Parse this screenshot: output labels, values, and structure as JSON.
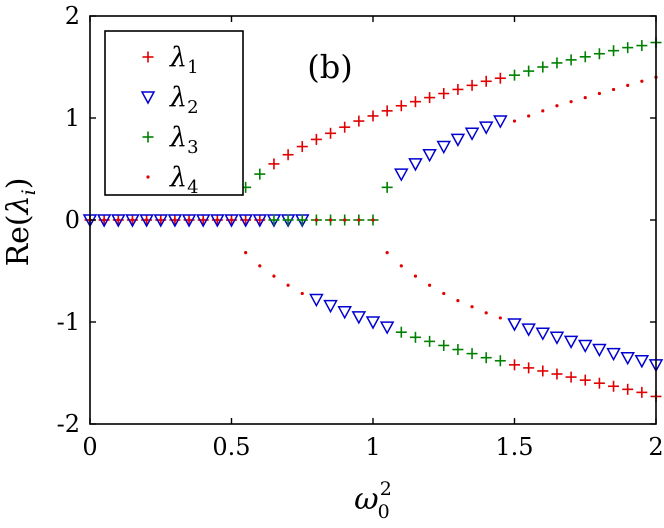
{
  "chart_data": {
    "type": "scatter",
    "title": "",
    "panel_label": "(b)",
    "xlabel": {
      "base": "ω",
      "sup": "2",
      "sub": "0"
    },
    "ylabel": {
      "prefix": "Re(",
      "var": "λ",
      "sub": "i",
      "suffix": ")"
    },
    "xlim": [
      0,
      2
    ],
    "ylim": [
      -2,
      2
    ],
    "xticks": [
      0,
      0.5,
      1,
      1.5,
      2
    ],
    "xtick_labels": [
      "0",
      "0.5",
      "1",
      "1.5",
      "2"
    ],
    "yticks": [
      -2,
      -1,
      0,
      1,
      2
    ],
    "ytick_labels": [
      "-2",
      "-1",
      "0",
      "1",
      "2"
    ],
    "grid": false,
    "legend_position": "top-left",
    "series": [
      {
        "name": "λ1",
        "label_base": "λ",
        "label_sub": "1",
        "marker": "plus",
        "color": "#e00000",
        "x": [
          0,
          0.05,
          0.1,
          0.15,
          0.2,
          0.25,
          0.3,
          0.35,
          0.4,
          0.45,
          0.5,
          0.55,
          0.6,
          0.65,
          0.7,
          0.75,
          0.8,
          0.85,
          0.9,
          0.95,
          1.0,
          1.05,
          1.1,
          1.15,
          1.2,
          1.25,
          1.3,
          1.35,
          1.4,
          1.45,
          1.5,
          1.55,
          1.6,
          1.65,
          1.7,
          1.75,
          1.8,
          1.85,
          1.9,
          1.95,
          2.0
        ],
        "y": [
          0,
          0,
          0,
          0,
          0,
          0,
          0,
          0,
          0,
          0,
          0,
          0,
          0,
          0.55,
          0.64,
          0.72,
          0.79,
          0.85,
          0.91,
          0.97,
          1.02,
          1.07,
          1.12,
          1.16,
          1.2,
          1.24,
          1.28,
          1.32,
          1.36,
          1.39,
          -1.42,
          -1.45,
          -1.48,
          -1.51,
          -1.54,
          -1.57,
          -1.6,
          -1.63,
          -1.66,
          -1.69,
          -1.73
        ]
      },
      {
        "name": "λ2",
        "label_base": "λ",
        "label_sub": "2",
        "marker": "triangle-down",
        "color": "#0000d0",
        "x": [
          0,
          0.05,
          0.1,
          0.15,
          0.2,
          0.25,
          0.3,
          0.35,
          0.4,
          0.45,
          0.5,
          0.55,
          0.6,
          0.65,
          0.7,
          0.75,
          0.8,
          0.85,
          0.9,
          0.95,
          1.0,
          1.05,
          1.1,
          1.15,
          1.2,
          1.25,
          1.3,
          1.35,
          1.4,
          1.45,
          1.5,
          1.55,
          1.6,
          1.65,
          1.7,
          1.75,
          1.8,
          1.85,
          1.9,
          1.95,
          2.0
        ],
        "y": [
          0,
          0,
          0,
          0,
          0,
          0,
          0,
          0,
          0,
          0,
          0,
          0,
          0,
          0,
          0,
          0,
          -0.78,
          -0.84,
          -0.9,
          -0.95,
          -1.0,
          -1.05,
          0.45,
          0.55,
          0.64,
          0.72,
          0.79,
          0.85,
          0.91,
          0.97,
          -1.02,
          -1.07,
          -1.11,
          -1.15,
          -1.19,
          -1.23,
          -1.27,
          -1.31,
          -1.35,
          -1.38,
          -1.42
        ]
      },
      {
        "name": "λ3",
        "label_base": "λ",
        "label_sub": "3",
        "marker": "plus",
        "color": "#008000",
        "x": [
          0.55,
          0.6,
          0.65,
          0.7,
          0.75,
          0.8,
          0.85,
          0.9,
          0.95,
          1.0,
          1.05,
          1.1,
          1.15,
          1.2,
          1.25,
          1.3,
          1.35,
          1.4,
          1.45,
          1.5,
          1.55,
          1.6,
          1.65,
          1.7,
          1.75,
          1.8,
          1.85,
          1.9,
          1.95,
          2.0
        ],
        "y": [
          0.32,
          0.45,
          0,
          0,
          0,
          0,
          0,
          0,
          0,
          0,
          0.32,
          -1.1,
          -1.15,
          -1.19,
          -1.23,
          -1.27,
          -1.31,
          -1.35,
          -1.38,
          1.42,
          1.46,
          1.5,
          1.54,
          1.57,
          1.6,
          1.63,
          1.66,
          1.69,
          1.71,
          1.74
        ]
      },
      {
        "name": "λ4",
        "label_base": "λ",
        "label_sub": "4",
        "marker": "dot",
        "color": "#e00000",
        "x": [
          0,
          0.05,
          0.1,
          0.15,
          0.2,
          0.25,
          0.3,
          0.35,
          0.4,
          0.45,
          0.5,
          0.55,
          0.6,
          0.65,
          0.7,
          0.75,
          0.8,
          0.85,
          0.9,
          0.95,
          1.0,
          1.05,
          1.1,
          1.15,
          1.2,
          1.25,
          1.3,
          1.35,
          1.4,
          1.45,
          1.5,
          1.55,
          1.6,
          1.65,
          1.7,
          1.75,
          1.8,
          1.85,
          1.9,
          1.95,
          2.0
        ],
        "y": [
          0,
          0,
          0,
          0,
          0,
          0,
          0,
          0,
          0,
          0,
          0,
          -0.32,
          -0.45,
          -0.55,
          -0.64,
          -0.72,
          0,
          0,
          0,
          0,
          0,
          -0.32,
          -0.45,
          -0.55,
          -0.64,
          -0.72,
          -0.79,
          -0.85,
          -0.91,
          -0.96,
          0.97,
          1.02,
          1.07,
          1.12,
          1.16,
          1.2,
          1.24,
          1.28,
          1.32,
          1.36,
          1.4
        ]
      }
    ]
  }
}
